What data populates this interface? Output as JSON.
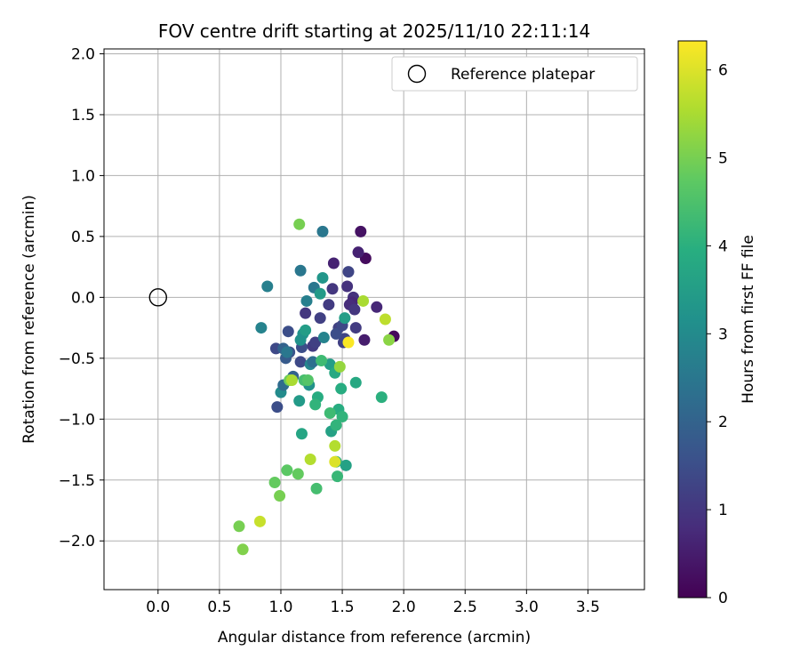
{
  "chart_data": {
    "type": "scatter",
    "title": "FOV centre drift starting at 2025/11/10 22:11:14",
    "xlabel": "Angular distance from reference (arcmin)",
    "ylabel": "Rotation from reference (arcmin)",
    "xlim": [
      -0.44,
      3.96
    ],
    "ylim": [
      -2.4,
      2.04
    ],
    "xticks": [
      0.0,
      0.5,
      1.0,
      1.5,
      2.0,
      2.5,
      3.0,
      3.5
    ],
    "xtick_labels": [
      "0.0",
      "0.5",
      "1.0",
      "1.5",
      "2.0",
      "2.5",
      "3.0",
      "3.5"
    ],
    "yticks": [
      -2.0,
      -1.5,
      -1.0,
      -0.5,
      0.0,
      0.5,
      1.0,
      1.5,
      2.0
    ],
    "ytick_labels": [
      "−2.0",
      "−1.5",
      "−1.0",
      "−0.5",
      "0.0",
      "0.5",
      "1.0",
      "1.5",
      "2.0"
    ],
    "grid": true,
    "legend": {
      "position": "top-right",
      "entries": [
        "Reference platepar"
      ]
    },
    "reference_point": {
      "x": 0.0,
      "y": 0.0,
      "label": "Reference platepar"
    },
    "colorbar": {
      "label": "Hours from first FF file",
      "colormap": "viridis",
      "range": [
        0,
        6.33
      ],
      "ticks": [
        0,
        1,
        2,
        3,
        4,
        5,
        6
      ],
      "tick_labels": [
        "0",
        "1",
        "2",
        "3",
        "4",
        "5",
        "6"
      ]
    },
    "series": [
      {
        "name": "FOV centre drift",
        "x": [
          1.65,
          1.69,
          1.92,
          1.68,
          1.63,
          1.59,
          1.58,
          1.56,
          1.54,
          1.6,
          1.61,
          1.78,
          1.55,
          1.43,
          1.51,
          1.52,
          1.42,
          1.47,
          1.39,
          1.45,
          1.5,
          1.32,
          1.2,
          1.26,
          1.28,
          1.17,
          1.16,
          1.06,
          1.07,
          0.96,
          1.04,
          1.02,
          1.1,
          0.97,
          1.16,
          1.18,
          1.27,
          1.21,
          1.24,
          1.05,
          1.0,
          1.26,
          1.02,
          0.84,
          0.89,
          1.16,
          1.34,
          1.34,
          1.23,
          1.32,
          1.35,
          1.2,
          1.15,
          1.4,
          1.52,
          1.61,
          1.82,
          1.44,
          1.41,
          1.47,
          1.45,
          1.49,
          1.53,
          1.3,
          1.28,
          1.19,
          1.17,
          1.5,
          1.48,
          1.4,
          1.33,
          1.46,
          1.29,
          1.45,
          1.22,
          1.14,
          1.05,
          1.07,
          0.99,
          0.95,
          1.88,
          1.67,
          1.09,
          1.15,
          0.66,
          0.69,
          1.44,
          1.44,
          1.55,
          1.85,
          1.24,
          0.83
        ],
        "y": [
          0.54,
          0.32,
          -0.32,
          -0.35,
          0.37,
          0.0,
          -0.04,
          -0.06,
          0.09,
          -0.1,
          -0.25,
          -0.08,
          0.21,
          0.28,
          -0.37,
          -0.34,
          0.07,
          -0.25,
          -0.06,
          -0.3,
          -0.23,
          -0.17,
          -0.13,
          -0.4,
          -0.37,
          -0.41,
          -0.53,
          -0.28,
          -0.45,
          -0.42,
          -0.5,
          -0.42,
          -0.65,
          -0.9,
          0.22,
          -0.3,
          0.08,
          -0.03,
          -0.55,
          -0.45,
          -0.78,
          -0.53,
          -0.72,
          -0.25,
          0.09,
          -0.35,
          0.54,
          0.16,
          -0.72,
          0.03,
          -0.33,
          -0.27,
          -0.85,
          -0.55,
          -0.17,
          -0.7,
          -0.82,
          -0.62,
          -1.1,
          -0.92,
          -1.05,
          -0.75,
          -1.38,
          -0.82,
          -0.88,
          -0.68,
          -1.12,
          -0.98,
          -0.57,
          -0.95,
          -0.52,
          -1.47,
          -1.57,
          -1.35,
          -0.68,
          -1.45,
          -1.42,
          -0.68,
          -1.63,
          -1.52,
          -0.35,
          -0.03,
          -0.68,
          0.6,
          -1.88,
          -2.07,
          -1.22,
          -1.35,
          -0.37,
          -0.18,
          -1.33,
          -1.84
        ],
        "c": [
          0.3,
          0.2,
          0.15,
          0.5,
          0.6,
          0.9,
          0.7,
          0.8,
          0.9,
          1.0,
          1.1,
          0.7,
          1.3,
          0.6,
          1.2,
          1.3,
          1.0,
          1.2,
          1.1,
          1.5,
          1.4,
          1.2,
          1.0,
          1.1,
          1.2,
          1.5,
          1.4,
          1.5,
          1.6,
          1.4,
          1.8,
          2.0,
          2.0,
          1.5,
          2.5,
          3.2,
          2.5,
          2.7,
          2.9,
          2.5,
          3.0,
          2.3,
          2.2,
          2.8,
          2.7,
          3.2,
          2.5,
          3.3,
          3.2,
          3.4,
          2.8,
          3.5,
          3.4,
          3.5,
          3.5,
          3.8,
          4.0,
          3.8,
          3.6,
          3.9,
          4.1,
          3.9,
          3.6,
          3.9,
          4.1,
          4.4,
          3.7,
          4.1,
          5.3,
          4.3,
          4.3,
          4.2,
          4.4,
          3.9,
          4.6,
          4.8,
          4.7,
          4.9,
          5.0,
          4.8,
          5.2,
          5.5,
          5.5,
          5.0,
          5.0,
          5.1,
          5.6,
          6.0,
          6.3,
          5.7,
          5.6,
          5.8
        ]
      }
    ]
  }
}
